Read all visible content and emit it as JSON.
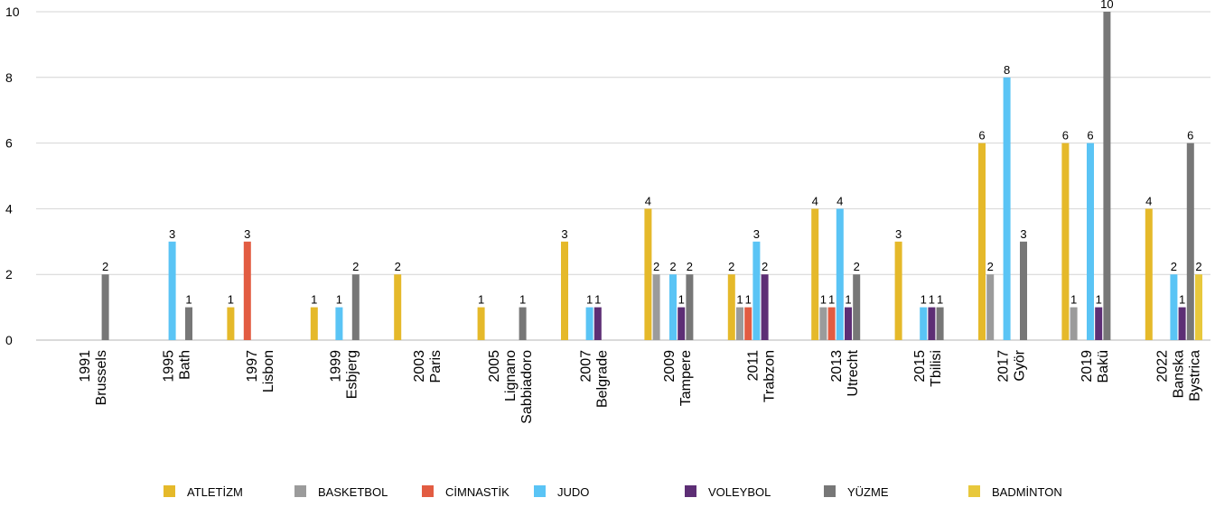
{
  "chart_data": {
    "type": "bar",
    "categories": [
      {
        "year": "1991",
        "city": "Brussels"
      },
      {
        "year": "1995",
        "city": "Bath"
      },
      {
        "year": "1997",
        "city": "Lisbon"
      },
      {
        "year": "1999",
        "city": "Esbjerg"
      },
      {
        "year": "2003",
        "city": "Paris"
      },
      {
        "year": "2005",
        "city": "Lignano Sabbiadoro"
      },
      {
        "year": "2007",
        "city": "Belgrade"
      },
      {
        "year": "2009",
        "city": "Tampere"
      },
      {
        "year": "2011",
        "city": "Trabzon"
      },
      {
        "year": "2013",
        "city": "Utrecht"
      },
      {
        "year": "2015",
        "city": "Tbilisi"
      },
      {
        "year": "2017",
        "city": "Györ"
      },
      {
        "year": "2019",
        "city": "Bakü"
      },
      {
        "year": "2022",
        "city": "Banska Bystrica"
      }
    ],
    "series": [
      {
        "name": "ATLETİZM",
        "color": "#e5b92a",
        "values": [
          null,
          null,
          1,
          1,
          2,
          1,
          3,
          4,
          2,
          4,
          3,
          6,
          6,
          4
        ]
      },
      {
        "name": "BASKETBOL",
        "color": "#9b9b9b",
        "values": [
          null,
          null,
          null,
          null,
          null,
          null,
          null,
          2,
          1,
          1,
          null,
          2,
          1,
          null
        ]
      },
      {
        "name": "CİMNASTİK",
        "color": "#e25c42",
        "values": [
          null,
          null,
          3,
          null,
          null,
          null,
          null,
          null,
          1,
          1,
          null,
          null,
          null,
          null
        ]
      },
      {
        "name": "JUDO",
        "color": "#5ac4f5",
        "values": [
          null,
          3,
          null,
          1,
          null,
          null,
          1,
          2,
          3,
          4,
          1,
          8,
          6,
          2
        ]
      },
      {
        "name": "VOLEYBOL",
        "color": "#5d2e75",
        "values": [
          null,
          null,
          null,
          null,
          null,
          null,
          1,
          1,
          2,
          1,
          1,
          null,
          1,
          1
        ]
      },
      {
        "name": "YÜZME",
        "color": "#777777",
        "values": [
          2,
          1,
          null,
          2,
          null,
          1,
          null,
          2,
          null,
          2,
          1,
          3,
          10,
          6
        ]
      },
      {
        "name": "BADMİNTON",
        "color": "#e8c83c",
        "values": [
          null,
          null,
          null,
          null,
          null,
          null,
          null,
          null,
          null,
          null,
          null,
          null,
          null,
          2
        ]
      }
    ],
    "ylim": [
      0,
      10
    ],
    "yticks": [
      0,
      2,
      4,
      6,
      8,
      10
    ],
    "grid": true,
    "legend_position": "bottom"
  }
}
